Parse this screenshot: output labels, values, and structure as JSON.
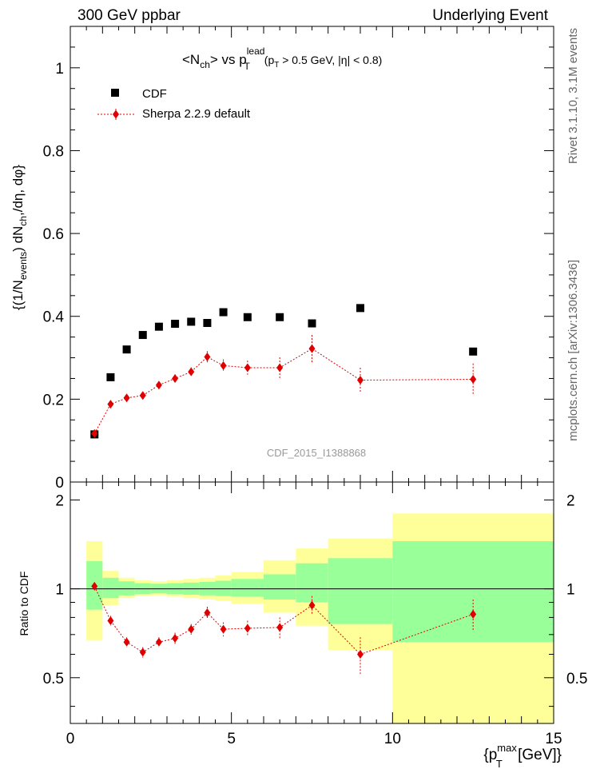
{
  "header": {
    "left": "300 GeV ppbar",
    "right": "Underlying Event"
  },
  "side_labels": {
    "rivet": "Rivet 3.1.10,  3.1M events",
    "mcplots": "mcplots.cern.ch [arXiv:1306.3436]"
  },
  "watermark": "CDF_2015_I1388868",
  "colors": {
    "data": "#000000",
    "mc": "#e00000",
    "band_green": "#99ff99",
    "band_yellow": "#ffff99"
  },
  "chart_data": [
    {
      "type": "scatter",
      "panel": "main",
      "title": "<N_ch> vs p_T^lead (p_T > 0.5 GeV, |η| < 0.8)",
      "title_parts": {
        "main": "<N",
        "sub1": "ch",
        "mid": "> vs p",
        "sup": "lead",
        "sub2": "T",
        "cut": "(p",
        "cut_sub": "T",
        "cut_rest": " > 0.5 GeV, |η| < 0.8)"
      },
      "ylabel": "{(1/N_events) dN_ch,/dη, dφ}",
      "ylabel_parts": {
        "a": "{(1/N",
        "b": "events",
        "c": ") dN",
        "d": "ch",
        "e": ",/dη, dφ}"
      },
      "xlim": [
        0,
        15
      ],
      "ylim": [
        0,
        1.1
      ],
      "yticks": [
        0,
        0.2,
        0.4,
        0.6,
        0.8,
        1
      ],
      "ytick_labels": [
        "0",
        "0.2",
        "0.4",
        "0.6",
        "0.8",
        "1"
      ],
      "legend": [
        {
          "name": "CDF",
          "marker": "square"
        },
        {
          "name": "Sherpa 2.2.9 default",
          "marker": "diamond-line"
        }
      ],
      "series": [
        {
          "name": "CDF",
          "x": [
            0.75,
            1.25,
            1.75,
            2.25,
            2.75,
            3.25,
            3.75,
            4.25,
            4.75,
            5.5,
            6.5,
            7.5,
            9.0,
            12.5
          ],
          "y": [
            0.115,
            0.253,
            0.32,
            0.355,
            0.375,
            0.382,
            0.387,
            0.384,
            0.41,
            0.398,
            0.398,
            0.383,
            0.42,
            0.315
          ]
        },
        {
          "name": "Sherpa 2.2.9 default",
          "x": [
            0.75,
            1.25,
            1.75,
            2.25,
            2.75,
            3.25,
            3.75,
            4.25,
            4.75,
            5.5,
            6.5,
            7.5,
            9.0,
            12.5
          ],
          "y": [
            0.117,
            0.188,
            0.203,
            0.209,
            0.234,
            0.25,
            0.266,
            0.302,
            0.281,
            0.276,
            0.276,
            0.322,
            0.246,
            0.248
          ],
          "err": [
            0.005,
            0.007,
            0.008,
            0.008,
            0.009,
            0.01,
            0.011,
            0.014,
            0.015,
            0.017,
            0.025,
            0.033,
            0.03,
            0.038
          ]
        }
      ]
    },
    {
      "type": "scatter",
      "panel": "ratio",
      "ylabel": "Ratio to CDF",
      "xlabel": "{p_T^max [GeV]}",
      "xlabel_parts": {
        "a": "{p",
        "sup": "max",
        "sub": "T",
        "b": " [GeV]}"
      },
      "xlim": [
        0,
        15
      ],
      "ylim": [
        0.35,
        2.3
      ],
      "xticks": [
        0,
        5,
        10,
        15
      ],
      "xtick_labels": [
        "0",
        "5",
        "10",
        "15"
      ],
      "yticks": [
        0.5,
        1,
        2
      ],
      "ytick_labels": [
        "0.5",
        "1",
        "2"
      ],
      "bands": {
        "edges": [
          0.5,
          1.0,
          1.5,
          2.0,
          2.5,
          3.0,
          3.5,
          4.0,
          4.5,
          5.0,
          6.0,
          7.0,
          8.0,
          10.0,
          15.0
        ],
        "green_lo": [
          0.85,
          0.93,
          0.95,
          0.96,
          0.965,
          0.96,
          0.955,
          0.95,
          0.945,
          0.94,
          0.92,
          0.9,
          0.76,
          0.66
        ],
        "green_hi": [
          1.24,
          1.09,
          1.06,
          1.045,
          1.04,
          1.045,
          1.05,
          1.055,
          1.065,
          1.08,
          1.12,
          1.22,
          1.27,
          1.45
        ],
        "yellow_lo": [
          0.67,
          0.88,
          0.93,
          0.945,
          0.95,
          0.94,
          0.93,
          0.92,
          0.91,
          0.89,
          0.83,
          0.75,
          0.62,
          0.35
        ],
        "yellow_hi": [
          1.45,
          1.15,
          1.09,
          1.07,
          1.06,
          1.07,
          1.08,
          1.09,
          1.11,
          1.14,
          1.25,
          1.37,
          1.48,
          1.8
        ]
      },
      "series": [
        {
          "name": "Sherpa / CDF",
          "x": [
            0.75,
            1.25,
            1.75,
            2.25,
            2.75,
            3.25,
            3.75,
            4.25,
            4.75,
            5.5,
            6.5,
            7.5,
            9.0,
            12.5
          ],
          "y": [
            1.02,
            0.78,
            0.66,
            0.61,
            0.66,
            0.68,
            0.73,
            0.83,
            0.73,
            0.735,
            0.74,
            0.88,
            0.6,
            0.82
          ],
          "err": [
            0.02,
            0.03,
            0.025,
            0.025,
            0.025,
            0.03,
            0.03,
            0.04,
            0.04,
            0.045,
            0.06,
            0.065,
            0.085,
            0.1
          ]
        }
      ]
    }
  ]
}
